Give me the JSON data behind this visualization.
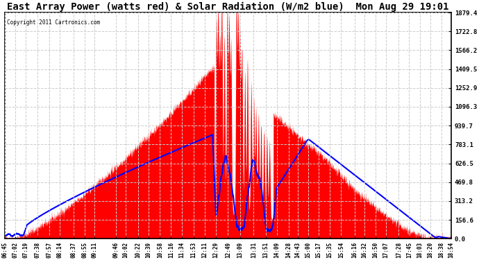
{
  "title": "East Array Power (watts red) & Solar Radiation (W/m2 blue)  Mon Aug 29 19:01",
  "copyright": "Copyright 2011 Cartronics.com",
  "ymax": 1879.4,
  "yticks": [
    0.0,
    156.6,
    313.2,
    469.8,
    626.5,
    783.1,
    939.7,
    1096.3,
    1252.9,
    1409.5,
    1566.2,
    1722.8,
    1879.4
  ],
  "ytick_labels": [
    "0.0",
    "156.6",
    "313.2",
    "469.8",
    "626.5",
    "783.1",
    "939.7",
    "1096.3",
    "1252.9",
    "1409.5",
    "1566.2",
    "1722.8",
    "1879.4"
  ],
  "bg_color": "#ffffff",
  "grid_color": "#cccccc",
  "red_color": "#ff0000",
  "blue_color": "#0000ff",
  "title_fontsize": 10,
  "xtick_labels": [
    "06:45",
    "07:02",
    "07:19",
    "07:38",
    "07:57",
    "08:14",
    "08:37",
    "08:55",
    "09:11",
    "09:46",
    "10:02",
    "10:22",
    "10:39",
    "10:58",
    "11:16",
    "11:34",
    "11:53",
    "12:11",
    "12:29",
    "12:49",
    "13:09",
    "13:31",
    "13:51",
    "14:09",
    "14:28",
    "14:43",
    "15:00",
    "15:17",
    "15:35",
    "15:54",
    "16:16",
    "16:32",
    "16:50",
    "17:07",
    "17:28",
    "17:45",
    "18:03",
    "18:20",
    "18:38",
    "18:54"
  ],
  "xtick_hours": [
    6.75,
    7.033,
    7.317,
    7.633,
    7.95,
    8.233,
    8.617,
    8.917,
    9.183,
    9.767,
    10.033,
    10.367,
    10.65,
    10.967,
    11.267,
    11.567,
    11.883,
    12.183,
    12.483,
    12.817,
    13.15,
    13.517,
    13.85,
    14.15,
    14.467,
    14.717,
    15.0,
    15.283,
    15.583,
    15.9,
    16.267,
    16.533,
    16.833,
    17.117,
    17.467,
    17.75,
    18.05,
    18.333,
    18.633,
    18.9
  ],
  "xmin": 6.75,
  "xmax": 18.9
}
